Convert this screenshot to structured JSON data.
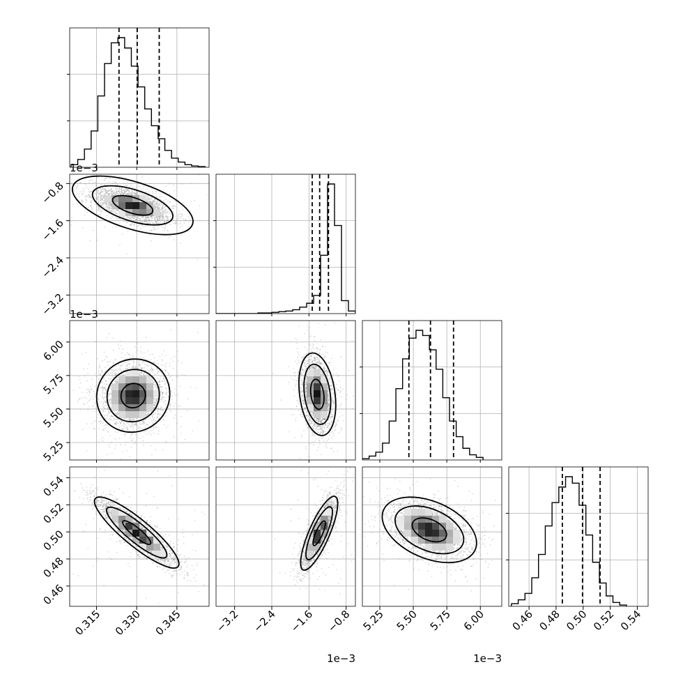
{
  "chart_data": {
    "type": "corner",
    "parameters": 4,
    "grid": true,
    "colors": {
      "line": "#000000",
      "grid": "#b0b0b0",
      "scatter": "#7f7f7f"
    },
    "axes": [
      {
        "range": [
          0.305,
          0.357
        ],
        "ticks": [
          0.315,
          0.33,
          0.345
        ],
        "tick_labels": [
          "0.315",
          "0.330",
          "0.345"
        ],
        "offset": ""
      },
      {
        "range": [
          -3.6,
          -0.6
        ],
        "ticks": [
          -3.2,
          -2.4,
          -1.6,
          -0.8
        ],
        "tick_labels": [
          "−3.2",
          "−2.4",
          "−1.6",
          "−0.8"
        ],
        "offset": "1e−3"
      },
      {
        "range": [
          5.12,
          6.16
        ],
        "ticks": [
          5.25,
          5.5,
          5.75,
          6.0
        ],
        "tick_labels": [
          "5.25",
          "5.50",
          "5.75",
          "6.00"
        ],
        "offset": "1e−3"
      },
      {
        "range": [
          0.445,
          0.548
        ],
        "ticks": [
          0.46,
          0.48,
          0.5,
          0.52,
          0.54
        ],
        "tick_labels": [
          "0.46",
          "0.48",
          "0.50",
          "0.52",
          "0.54"
        ],
        "offset": ""
      }
    ],
    "histograms": [
      {
        "param": 0,
        "bin_start": 0.3055,
        "bin_width": 0.0025,
        "counts": [
          2,
          6,
          14,
          28,
          55,
          80,
          96,
          100,
          92,
          78,
          62,
          45,
          32,
          22,
          13,
          7,
          4,
          2,
          1,
          0.5
        ],
        "quantiles": [
          0.3234,
          0.3302,
          0.3384
        ]
      },
      {
        "param": 1,
        "bin_start": -3.6,
        "bin_width": 0.15,
        "counts": [
          0,
          0,
          0,
          0,
          0,
          0,
          0.5,
          0.5,
          1,
          1.5,
          2,
          3,
          5,
          8,
          14,
          45,
          100,
          68,
          10,
          2
        ],
        "quantiles": [
          -1.53,
          -1.37,
          -1.18
        ]
      },
      {
        "param": 2,
        "bin_start": 5.12,
        "bin_width": 0.05,
        "counts": [
          1,
          3,
          6,
          13,
          30,
          55,
          78,
          94,
          100,
          96,
          85,
          70,
          48,
          30,
          18,
          9,
          4,
          2
        ],
        "quantiles": [
          5.467,
          5.628,
          5.8
        ]
      },
      {
        "param": 3,
        "bin_start": 0.447,
        "bin_width": 0.005,
        "counts": [
          2,
          5,
          10,
          22,
          40,
          62,
          80,
          92,
          100,
          95,
          78,
          55,
          34,
          18,
          8,
          3,
          1
        ],
        "quantiles": [
          0.4846,
          0.4995,
          0.5125
        ]
      }
    ],
    "pairs": [
      {
        "x": 0,
        "y": 1,
        "center": [
          0.3285,
          -1.27
        ],
        "sd": [
          0.0075,
          0.21
        ],
        "corr": -0.55,
        "contour_scale": [
          1.0,
          2.0,
          3.0
        ]
      },
      {
        "x": 0,
        "y": 2,
        "center": [
          0.3287,
          5.6
        ],
        "sd": [
          0.0065,
          0.13
        ],
        "corr": 0.05,
        "contour_scale": [
          0.7,
          1.5,
          2.1
        ]
      },
      {
        "x": 1,
        "y": 2,
        "center": [
          -1.42,
          5.61
        ],
        "sd": [
          0.18,
          0.14
        ],
        "corr": -0.25,
        "contour_scale": [
          0.8,
          1.6,
          2.2
        ]
      },
      {
        "x": 0,
        "y": 3,
        "center": [
          0.33,
          0.4995
        ],
        "sd": [
          0.0075,
          0.0125
        ],
        "corr": -0.88,
        "contour_scale": [
          0.7,
          1.5,
          2.1
        ]
      },
      {
        "x": 1,
        "y": 3,
        "center": [
          -1.38,
          0.499
        ],
        "sd": [
          0.19,
          0.013
        ],
        "corr": 0.8,
        "contour_scale": [
          0.7,
          1.5,
          2.1
        ]
      },
      {
        "x": 2,
        "y": 3,
        "center": [
          5.62,
          0.5015
        ],
        "sd": [
          0.16,
          0.011
        ],
        "corr": -0.4,
        "contour_scale": [
          0.8,
          1.6,
          2.2
        ]
      }
    ]
  }
}
